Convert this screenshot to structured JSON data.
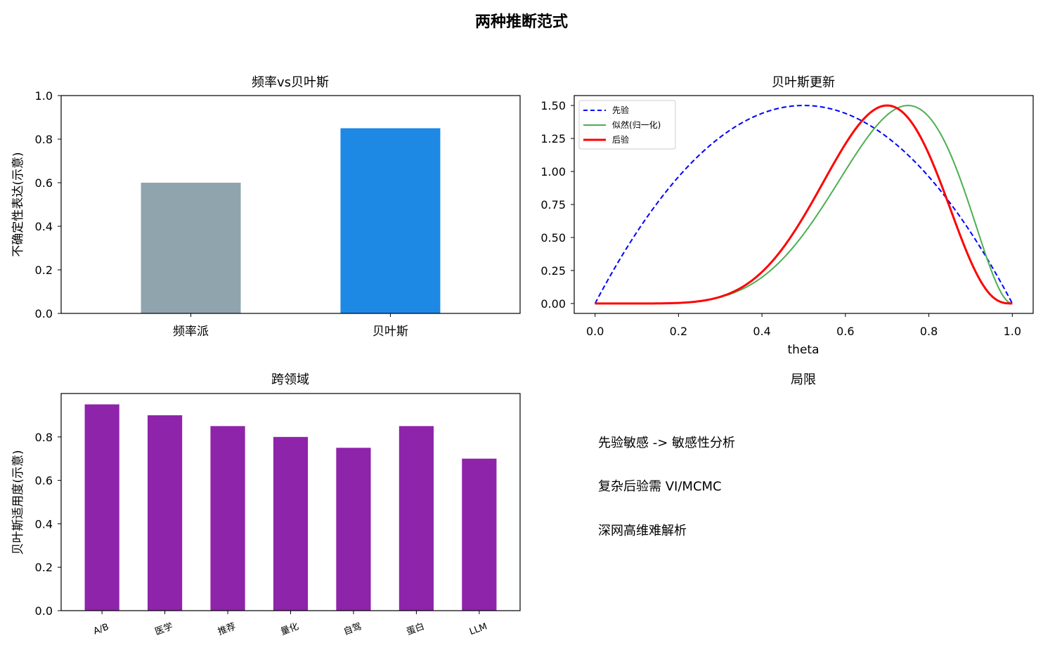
{
  "figure_title": "两种推断范式",
  "chart_data": [
    {
      "id": "p1",
      "type": "bar",
      "title": "频率vs贝叶斯",
      "xlabel": "",
      "ylabel": "不确定性表达(示意)",
      "categories": [
        "频率派",
        "贝叶斯"
      ],
      "values": [
        0.6,
        0.85
      ],
      "colors": [
        "#90a4ae",
        "#1e88e5"
      ],
      "ylim": [
        0,
        1.0
      ],
      "yticks": [
        "0.0",
        "0.2",
        "0.4",
        "0.6",
        "0.8",
        "1.0"
      ],
      "grid": false
    },
    {
      "id": "p2",
      "type": "line",
      "title": "贝叶斯更新",
      "xlabel": "theta",
      "ylabel": "",
      "xlim": [
        -0.05,
        1.05
      ],
      "ylim": [
        -0.075,
        1.575
      ],
      "xticks": [
        "0.0",
        "0.2",
        "0.4",
        "0.6",
        "0.8",
        "1.0"
      ],
      "yticks": [
        "0.00",
        "0.25",
        "0.50",
        "0.75",
        "1.00",
        "1.25",
        "1.50"
      ],
      "legend_position": "upper-left",
      "series": [
        {
          "name": "先验",
          "color": "#0000ff",
          "style": "dashed",
          "curve": "beta(2,2) scaled to max 1.5"
        },
        {
          "name": "似然(归一化)",
          "color": "#4caf50",
          "style": "solid",
          "curve": "beta(7,3) scaled to max 1.5"
        },
        {
          "name": "后验",
          "color": "#ff0000",
          "style": "solid-thick",
          "curve": "beta(8,4) scaled to max 1.5"
        }
      ],
      "grid": false
    },
    {
      "id": "p3",
      "type": "bar",
      "title": "跨领域",
      "xlabel": "",
      "ylabel": "贝叶斯适用度(示意)",
      "categories": [
        "A/B",
        "医学",
        "推荐",
        "量化",
        "自驾",
        "蛋白",
        "LLM"
      ],
      "values": [
        0.95,
        0.9,
        0.85,
        0.8,
        0.75,
        0.85,
        0.7
      ],
      "colors": [
        "#8e24aa"
      ],
      "ylim": [
        0,
        1.0
      ],
      "yticks": [
        "0.0",
        "0.2",
        "0.4",
        "0.6",
        "0.8"
      ],
      "grid": false
    }
  ],
  "panel4": {
    "title": "局限",
    "notes": [
      "先验敏感 -> 敏感性分析",
      "复杂后验需 VI/MCMC",
      "深网高维难解析"
    ]
  }
}
